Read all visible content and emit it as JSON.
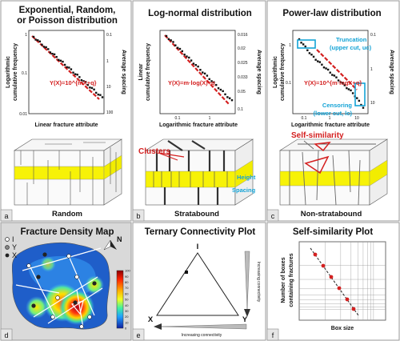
{
  "panels": {
    "a": {
      "letter": "a",
      "title_line1": "Exponential, Random,",
      "title_line2": "or Poisson distribution",
      "xlabel": "Linear fracture attribute",
      "ylabel_line1": "Logarithmic",
      "ylabel_line2": "cumulative frequency",
      "y2label": "Average spacing",
      "y_ticks": [
        "1",
        "0.1",
        "0.01"
      ],
      "y2_ticks": [
        "0.1",
        "1",
        "10",
        "100"
      ],
      "equation": "Y(X)=10^{mX+q}",
      "caption": "Random"
    },
    "b": {
      "letter": "b",
      "title": "Log-normal distribution",
      "xlabel": "Logarithmic fracture attribute",
      "ylabel_line1": "Linear",
      "ylabel_line2": "cumulative frequency",
      "y2label": "Average spacing",
      "x_ticks": [
        "0.1",
        "1"
      ],
      "y2_ticks": [
        "0.016",
        "0.02",
        "0.025",
        "0.033",
        "0.05",
        "0.1"
      ],
      "equation": "Y(X)=m·log(X)+q",
      "annot_clusters": "Clusters",
      "annot_height": "Height",
      "annot_spacing": "Spacing",
      "caption": "Stratabound"
    },
    "c": {
      "letter": "c",
      "title": "Power-law distribution",
      "xlabel": "Logarithmic fracture attribute",
      "ylabel_line1": "Logarithmic",
      "ylabel_line2": "cumulative frequency",
      "y2label": "Average spacing",
      "x_ticks": [
        "0.1",
        "1",
        "10"
      ],
      "y_ticks": [
        "1",
        "0.1"
      ],
      "y2_ticks": [
        "0.1",
        "1",
        "10"
      ],
      "equation": "Y(X)=10^{m·logX+q}",
      "trunc_line1": "Truncation",
      "trunc_line2": "(upper cut, uc)",
      "cens_line1": "Censoring",
      "cens_line2": "(lower cut, lc)",
      "annot_selfsim": "Self-similarity",
      "caption": "Non-stratabound"
    },
    "d": {
      "letter": "d",
      "title": "Fracture Density Map",
      "legend": [
        "I",
        "Y",
        "X"
      ],
      "north": "N",
      "colorbar_ticks": [
        "100",
        "90",
        "80",
        "70",
        "60",
        "50",
        "40",
        "30",
        "20",
        "10",
        "0"
      ]
    },
    "e": {
      "letter": "e",
      "title": "Ternary Connectivity Plot",
      "vertex_top": "I",
      "vertex_left": "X",
      "vertex_right": "Y",
      "arrow_right": "Increasing connectivity",
      "arrow_bottom": "Increasing connectivity"
    },
    "f": {
      "letter": "f",
      "title": "Self-similarity Plot",
      "ylabel_line1": "Number of boxes",
      "ylabel_line2": "containing fractures",
      "xlabel": "Box size"
    }
  },
  "colors": {
    "equation": "#d42020",
    "annotation": "#14a3d6",
    "layer": "#f7f207",
    "panel_label_bg": "#e6e6e6"
  }
}
